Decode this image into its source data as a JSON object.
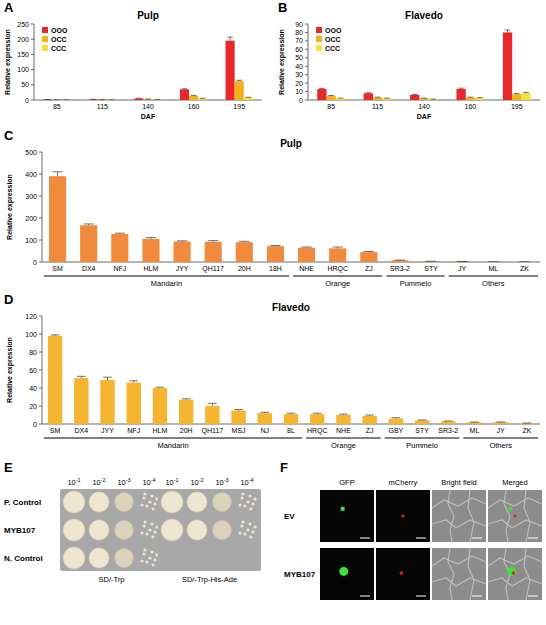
{
  "chart_data": [
    {
      "panel": "A",
      "type": "bar",
      "title": "Pulp",
      "xlabel": "DAF",
      "ylabel": "Relative expression",
      "categories": [
        "85",
        "115",
        "140",
        "160",
        "195"
      ],
      "series": [
        {
          "name": "OOO",
          "color": "#e8282b",
          "values": [
            1.2,
            2,
            5,
            35,
            195
          ],
          "errors": [
            0.3,
            0.4,
            0.6,
            2,
            12
          ]
        },
        {
          "name": "OCC",
          "color": "#f2b21b",
          "values": [
            0.8,
            1.2,
            3,
            14,
            62
          ],
          "errors": [
            0.2,
            0.2,
            0.4,
            1.2,
            3
          ]
        },
        {
          "name": "CCC",
          "color": "#f7e23b",
          "values": [
            0.4,
            0.5,
            1.2,
            5,
            8
          ],
          "errors": [
            0.1,
            0.1,
            0.2,
            0.6,
            1
          ]
        }
      ],
      "ylim": [
        0,
        250
      ],
      "yticks": [
        0,
        50,
        100,
        150,
        200,
        250
      ],
      "legend": "top-left",
      "grid": false
    },
    {
      "panel": "B",
      "type": "bar",
      "title": "Flavedo",
      "xlabel": "DAF",
      "ylabel": "Relative expression",
      "categories": [
        "85",
        "115",
        "140",
        "160",
        "195"
      ],
      "series": [
        {
          "name": "OOO",
          "color": "#e8282b",
          "values": [
            13,
            8,
            6,
            13,
            80
          ],
          "errors": [
            0.8,
            0.6,
            0.5,
            1,
            3
          ]
        },
        {
          "name": "OCC",
          "color": "#f2b21b",
          "values": [
            5,
            3,
            2,
            3,
            7
          ],
          "errors": [
            0.4,
            0.3,
            0.2,
            0.3,
            0.6
          ]
        },
        {
          "name": "CCC",
          "color": "#f7e23b",
          "values": [
            2,
            2,
            1,
            2.5,
            8
          ],
          "errors": [
            0.2,
            0.2,
            0.1,
            0.3,
            1
          ]
        }
      ],
      "ylim": [
        0,
        90
      ],
      "yticks": [
        0,
        10,
        20,
        30,
        40,
        50,
        60,
        70,
        80,
        90
      ],
      "legend": "top-left",
      "grid": false
    },
    {
      "panel": "C",
      "type": "bar",
      "title": "Pulp",
      "ylabel": "Relative expression",
      "categories": [
        "SM",
        "DX4",
        "NFJ",
        "HLM",
        "JYY",
        "QH117",
        "20H",
        "18H",
        "NHE",
        "HRQC",
        "ZJ",
        "SR3-2",
        "STY",
        "JY",
        "ML",
        "ZK"
      ],
      "values": [
        390,
        167,
        127,
        105,
        93,
        92,
        90,
        72,
        65,
        62,
        45,
        8,
        3,
        2,
        1,
        1
      ],
      "errors": [
        20,
        6,
        4,
        6,
        3,
        5,
        4,
        3,
        3,
        6,
        3,
        1,
        0.5,
        0.3,
        0.2,
        0.2
      ],
      "color": "#f08a3c",
      "groups": [
        {
          "label": "Mandarin",
          "count": 8
        },
        {
          "label": "Orange",
          "count": 3
        },
        {
          "label": "Pummelo",
          "count": 2
        },
        {
          "label": "Others",
          "count": 3
        }
      ],
      "ylim": [
        0,
        500
      ],
      "yticks": [
        0,
        100,
        200,
        300,
        400,
        500
      ],
      "grid": false
    },
    {
      "panel": "D",
      "type": "bar",
      "title": "Flavedo",
      "ylabel": "Relative expression",
      "categories": [
        "SM",
        "DX4",
        "JYY",
        "NFJ",
        "HLM",
        "20H",
        "QH117",
        "MSJ",
        "NJ",
        "8L",
        "HRQC",
        "NHE",
        "ZJ",
        "GBY",
        "STY",
        "SR3-2",
        "ML",
        "JY",
        "ZK"
      ],
      "values": [
        98,
        51,
        49,
        46,
        40,
        27,
        20,
        15,
        12,
        11,
        11,
        10,
        9,
        6,
        4,
        3,
        2,
        2,
        1
      ],
      "errors": [
        1,
        2,
        3,
        2,
        1,
        1,
        3,
        1,
        1,
        1,
        1,
        1,
        1,
        1,
        0.5,
        0.3,
        0.2,
        0.2,
        0.1
      ],
      "color": "#f5b531",
      "groups": [
        {
          "label": "Mandarin",
          "count": 10
        },
        {
          "label": "Orange",
          "count": 3
        },
        {
          "label": "Pummelo",
          "count": 3
        },
        {
          "label": "Others",
          "count": 3
        }
      ],
      "ylim": [
        0,
        120
      ],
      "yticks": [
        0,
        20,
        40,
        60,
        80,
        100,
        120
      ],
      "grid": false
    }
  ],
  "yeast_assay": {
    "panel": "E",
    "dilutions": [
      {
        "base": "10",
        "exponent": "-1"
      },
      {
        "base": "10",
        "exponent": "-2"
      },
      {
        "base": "10",
        "exponent": "-3"
      },
      {
        "base": "10",
        "exponent": "-4"
      }
    ],
    "rows": [
      "P. Control",
      "MYB107",
      "N. Control"
    ],
    "media": [
      "SD/-Trp",
      "SD/-Trp-His-Ade"
    ],
    "growth": [
      [
        true,
        true,
        true
      ],
      [
        true,
        true,
        false
      ]
    ]
  },
  "localization": {
    "panel": "F",
    "columns": [
      "GFP",
      "mCherry",
      "Bright field",
      "Merged"
    ],
    "rows": [
      "EV",
      "MYB107"
    ]
  }
}
